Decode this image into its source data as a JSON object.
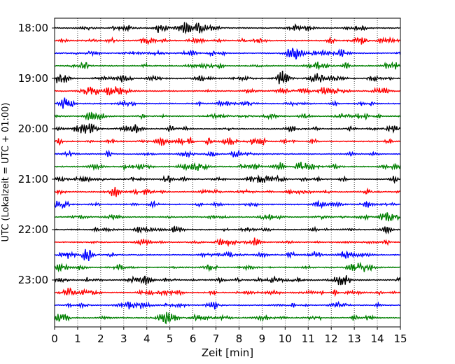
{
  "chart_data": {
    "type": "line",
    "xlabel": "Zeit  [min]",
    "ylabel": "UTC (Lokalzeit = UTC + 01:00)",
    "xlim": [
      0,
      15
    ],
    "x_ticks": [
      "0",
      "1",
      "2",
      "3",
      "4",
      "5",
      "6",
      "7",
      "8",
      "9",
      "10",
      "11",
      "12",
      "13",
      "14",
      "15"
    ],
    "y_tick_labels": [
      "18:00",
      "19:00",
      "20:00",
      "21:00",
      "22:00",
      "23:00"
    ],
    "row_minutes": 15,
    "rows_per_hour": 4,
    "row_start_times": [
      "18:00",
      "18:15",
      "18:30",
      "18:45",
      "19:00",
      "19:15",
      "19:30",
      "19:45",
      "20:00",
      "20:15",
      "20:30",
      "20:45",
      "21:00",
      "21:15",
      "21:30",
      "21:45",
      "22:00",
      "22:15",
      "22:30",
      "22:45",
      "23:00",
      "23:15",
      "23:30",
      "23:45"
    ],
    "series_colors": [
      "#000000",
      "#ff0000",
      "#0000ff",
      "#008000"
    ],
    "grid": "vertical dotted at each minute"
  }
}
